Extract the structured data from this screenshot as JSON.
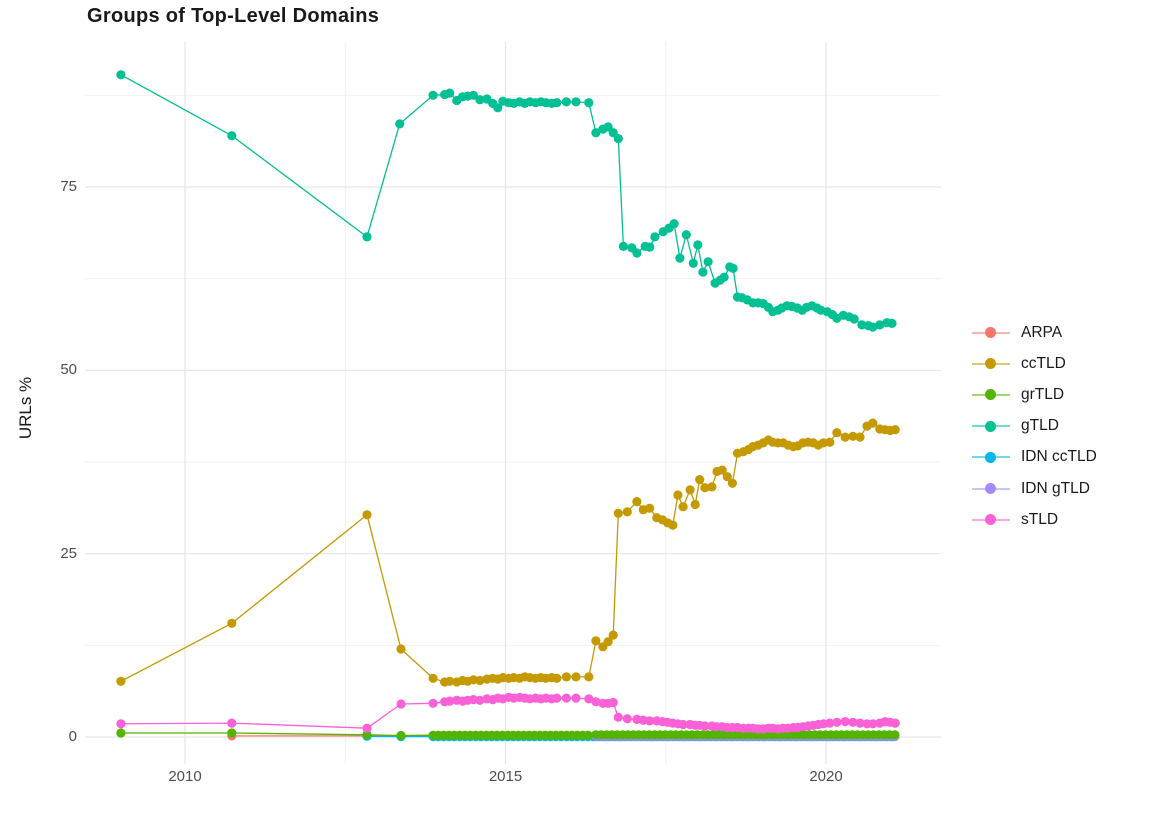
{
  "page": {
    "background": "#FFFFFF",
    "text_color": "#1A1A1A",
    "tick_color": "#4D4D4D",
    "gridline_major_color": "#E6E6E6",
    "gridline_minor_color": "#F0F0F0"
  },
  "chart_data": {
    "type": "line",
    "title": "Groups of Top-Level Domains",
    "xlabel": "",
    "ylabel": "URLs %",
    "grid": "on",
    "legend_position": "right",
    "xlim": [
      2008.4,
      2021.8
    ],
    "ylim": [
      -4.7,
      94.9
    ],
    "x_ticks": [
      {
        "label": "2010",
        "x": 2010
      },
      {
        "label": "2015",
        "x": 2015
      },
      {
        "label": "2020",
        "x": 2020
      }
    ],
    "x_minor_gridlines": [
      2012.5,
      2017.5
    ],
    "y_ticks": [
      {
        "label": "0",
        "y": 0
      },
      {
        "label": "25",
        "y": 25
      },
      {
        "label": "50",
        "y": 50
      },
      {
        "label": "75",
        "y": 75
      }
    ],
    "y_minor_gridlines": [
      12.5,
      37.5,
      62.5,
      87.5
    ],
    "draw_order": [
      "ARPA",
      "IDN ccTLD",
      "IDN gTLD",
      "ccTLD",
      "grTLD",
      "gTLD",
      "sTLD"
    ],
    "series": [
      {
        "name": "ARPA",
        "color": "#F8766D",
        "points": [
          [
            2010.73,
            0.15
          ],
          [
            2012.84,
            0.15
          ],
          [
            2013.37,
            0.1
          ]
        ],
        "runs": [
          [
            2013.87,
            2016.3,
            0.0833,
            0.1
          ],
          [
            2016.41,
            2021.08,
            0.0833,
            0.05
          ]
        ]
      },
      {
        "name": "ccTLD",
        "color": "#C49A00",
        "points": [
          [
            2009.0,
            7.6
          ],
          [
            2010.73,
            15.5
          ],
          [
            2012.84,
            30.3
          ],
          [
            2013.37,
            12.0
          ],
          [
            2013.87,
            8.0
          ],
          [
            2014.05,
            7.5
          ],
          [
            2014.13,
            7.6
          ],
          [
            2014.24,
            7.5
          ],
          [
            2014.33,
            7.7
          ],
          [
            2014.41,
            7.6
          ],
          [
            2014.5,
            7.8
          ],
          [
            2014.6,
            7.7
          ],
          [
            2014.71,
            7.9
          ],
          [
            2014.8,
            8.0
          ],
          [
            2014.88,
            7.9
          ],
          [
            2014.96,
            8.1
          ],
          [
            2015.05,
            8.0
          ],
          [
            2015.13,
            8.1
          ],
          [
            2015.22,
            8.0
          ],
          [
            2015.3,
            8.2
          ],
          [
            2015.38,
            8.1
          ],
          [
            2015.47,
            8.0
          ],
          [
            2015.55,
            8.1
          ],
          [
            2015.63,
            8.0
          ],
          [
            2015.72,
            8.1
          ],
          [
            2015.8,
            8.0
          ],
          [
            2015.95,
            8.2
          ],
          [
            2016.1,
            8.2
          ],
          [
            2016.3,
            8.2
          ],
          [
            2016.41,
            13.1
          ],
          [
            2016.52,
            12.3
          ],
          [
            2016.6,
            13.0
          ],
          [
            2016.68,
            13.9
          ],
          [
            2016.76,
            30.5
          ],
          [
            2016.9,
            30.7
          ],
          [
            2017.05,
            32.1
          ],
          [
            2017.15,
            31.0
          ],
          [
            2017.25,
            31.2
          ],
          [
            2017.36,
            29.9
          ],
          [
            2017.45,
            29.6
          ],
          [
            2017.53,
            29.2
          ],
          [
            2017.61,
            28.9
          ],
          [
            2017.69,
            33.0
          ],
          [
            2017.77,
            31.4
          ],
          [
            2017.88,
            33.7
          ],
          [
            2017.96,
            31.7
          ],
          [
            2018.03,
            35.1
          ],
          [
            2018.11,
            34.0
          ],
          [
            2018.22,
            34.1
          ],
          [
            2018.3,
            36.2
          ],
          [
            2018.38,
            36.4
          ],
          [
            2018.46,
            35.5
          ],
          [
            2018.54,
            34.6
          ],
          [
            2018.62,
            38.7
          ],
          [
            2018.71,
            38.9
          ],
          [
            2018.79,
            39.2
          ],
          [
            2018.86,
            39.6
          ],
          [
            2018.94,
            39.8
          ],
          [
            2019.02,
            40.1
          ],
          [
            2019.1,
            40.5
          ],
          [
            2019.17,
            40.2
          ],
          [
            2019.25,
            40.1
          ],
          [
            2019.33,
            40.1
          ],
          [
            2019.41,
            39.8
          ],
          [
            2019.49,
            39.6
          ],
          [
            2019.56,
            39.7
          ],
          [
            2019.64,
            40.1
          ],
          [
            2019.72,
            40.2
          ],
          [
            2019.8,
            40.1
          ],
          [
            2019.88,
            39.8
          ],
          [
            2019.96,
            40.1
          ],
          [
            2020.06,
            40.2
          ],
          [
            2020.17,
            41.5
          ],
          [
            2020.3,
            40.9
          ],
          [
            2020.42,
            41.0
          ],
          [
            2020.53,
            40.9
          ],
          [
            2020.64,
            42.4
          ],
          [
            2020.73,
            42.8
          ],
          [
            2020.84,
            42.0
          ],
          [
            2020.92,
            41.9
          ],
          [
            2021.0,
            41.8
          ],
          [
            2021.08,
            41.9
          ]
        ]
      },
      {
        "name": "grTLD",
        "color": "#53B400",
        "points": [
          [
            2009.0,
            0.55
          ],
          [
            2010.73,
            0.55
          ],
          [
            2012.84,
            0.3
          ],
          [
            2013.37,
            0.2
          ]
        ],
        "runs": [
          [
            2013.87,
            2016.3,
            0.0833,
            0.25
          ],
          [
            2016.41,
            2021.08,
            0.0833,
            0.3
          ]
        ]
      },
      {
        "name": "gTLD",
        "color": "#00C094",
        "points": [
          [
            2009.0,
            90.3
          ],
          [
            2010.73,
            82.0
          ],
          [
            2012.84,
            68.2
          ],
          [
            2013.35,
            83.6
          ],
          [
            2013.87,
            87.5
          ],
          [
            2014.05,
            87.6
          ],
          [
            2014.13,
            87.8
          ],
          [
            2014.24,
            86.8
          ],
          [
            2014.33,
            87.3
          ],
          [
            2014.41,
            87.4
          ],
          [
            2014.5,
            87.5
          ],
          [
            2014.6,
            86.9
          ],
          [
            2014.71,
            87.0
          ],
          [
            2014.8,
            86.4
          ],
          [
            2014.88,
            85.8
          ],
          [
            2014.96,
            86.7
          ],
          [
            2015.05,
            86.5
          ],
          [
            2015.13,
            86.4
          ],
          [
            2015.22,
            86.6
          ],
          [
            2015.3,
            86.4
          ],
          [
            2015.38,
            86.6
          ],
          [
            2015.47,
            86.5
          ],
          [
            2015.55,
            86.6
          ],
          [
            2015.63,
            86.5
          ],
          [
            2015.72,
            86.4
          ],
          [
            2015.8,
            86.5
          ],
          [
            2015.95,
            86.6
          ],
          [
            2016.1,
            86.6
          ],
          [
            2016.3,
            86.5
          ],
          [
            2016.41,
            82.4
          ],
          [
            2016.52,
            82.9
          ],
          [
            2016.6,
            83.2
          ],
          [
            2016.68,
            82.4
          ],
          [
            2016.76,
            81.6
          ],
          [
            2016.84,
            66.9
          ],
          [
            2016.97,
            66.7
          ],
          [
            2017.05,
            66.0
          ],
          [
            2017.18,
            66.9
          ],
          [
            2017.25,
            66.8
          ],
          [
            2017.33,
            68.2
          ],
          [
            2017.46,
            68.9
          ],
          [
            2017.55,
            69.4
          ],
          [
            2017.63,
            70.0
          ],
          [
            2017.72,
            65.3
          ],
          [
            2017.82,
            68.5
          ],
          [
            2017.93,
            64.6
          ],
          [
            2018.0,
            67.1
          ],
          [
            2018.08,
            63.4
          ],
          [
            2018.16,
            64.8
          ],
          [
            2018.27,
            61.9
          ],
          [
            2018.35,
            62.3
          ],
          [
            2018.41,
            62.7
          ],
          [
            2018.5,
            64.1
          ],
          [
            2018.55,
            63.9
          ],
          [
            2018.62,
            60.0
          ],
          [
            2018.69,
            59.9
          ],
          [
            2018.77,
            59.6
          ],
          [
            2018.86,
            59.2
          ],
          [
            2018.94,
            59.2
          ],
          [
            2019.02,
            59.1
          ],
          [
            2019.1,
            58.6
          ],
          [
            2019.17,
            58.0
          ],
          [
            2019.25,
            58.2
          ],
          [
            2019.31,
            58.5
          ],
          [
            2019.39,
            58.8
          ],
          [
            2019.47,
            58.7
          ],
          [
            2019.55,
            58.5
          ],
          [
            2019.63,
            58.2
          ],
          [
            2019.7,
            58.6
          ],
          [
            2019.78,
            58.8
          ],
          [
            2019.86,
            58.5
          ],
          [
            2019.92,
            58.2
          ],
          [
            2020.02,
            58.0
          ],
          [
            2020.1,
            57.6
          ],
          [
            2020.17,
            57.1
          ],
          [
            2020.27,
            57.5
          ],
          [
            2020.36,
            57.3
          ],
          [
            2020.44,
            57.0
          ],
          [
            2020.56,
            56.2
          ],
          [
            2020.66,
            56.1
          ],
          [
            2020.73,
            55.9
          ],
          [
            2020.84,
            56.2
          ],
          [
            2020.95,
            56.5
          ],
          [
            2021.03,
            56.4
          ]
        ]
      },
      {
        "name": "IDN ccTLD",
        "color": "#00B6EB",
        "points": [
          [
            2012.84,
            0.1
          ],
          [
            2013.37,
            0.05
          ]
        ],
        "runs": [
          [
            2013.87,
            2021.08,
            0.0833,
            0.05
          ]
        ]
      },
      {
        "name": "IDN gTLD",
        "color": "#A58AFF",
        "points": [],
        "runs": [
          [
            2016.41,
            2021.08,
            0.0833,
            0.1
          ]
        ]
      },
      {
        "name": "sTLD",
        "color": "#FB61D7",
        "points": [
          [
            2009.0,
            1.8
          ],
          [
            2010.73,
            1.9
          ],
          [
            2012.84,
            1.2
          ],
          [
            2013.37,
            4.5
          ],
          [
            2013.87,
            4.6
          ],
          [
            2014.05,
            4.8
          ],
          [
            2014.13,
            4.9
          ],
          [
            2014.24,
            5.0
          ],
          [
            2014.33,
            4.9
          ],
          [
            2014.41,
            5.0
          ],
          [
            2014.5,
            5.1
          ],
          [
            2014.6,
            5.0
          ],
          [
            2014.71,
            5.2
          ],
          [
            2014.8,
            5.1
          ],
          [
            2014.88,
            5.3
          ],
          [
            2014.96,
            5.2
          ],
          [
            2015.05,
            5.4
          ],
          [
            2015.13,
            5.3
          ],
          [
            2015.22,
            5.4
          ],
          [
            2015.3,
            5.3
          ],
          [
            2015.38,
            5.2
          ],
          [
            2015.47,
            5.3
          ],
          [
            2015.55,
            5.2
          ],
          [
            2015.63,
            5.3
          ],
          [
            2015.72,
            5.2
          ],
          [
            2015.8,
            5.3
          ],
          [
            2015.95,
            5.3
          ],
          [
            2016.1,
            5.3
          ],
          [
            2016.3,
            5.2
          ],
          [
            2016.41,
            4.8
          ],
          [
            2016.52,
            4.6
          ],
          [
            2016.6,
            4.6
          ],
          [
            2016.68,
            4.7
          ],
          [
            2016.76,
            2.7
          ],
          [
            2016.9,
            2.5
          ],
          [
            2017.05,
            2.4
          ],
          [
            2017.15,
            2.3
          ],
          [
            2017.25,
            2.2
          ],
          [
            2017.36,
            2.2
          ],
          [
            2017.45,
            2.1
          ],
          [
            2017.53,
            2.0
          ],
          [
            2017.61,
            1.9
          ],
          [
            2017.69,
            1.8
          ],
          [
            2017.77,
            1.7
          ],
          [
            2017.88,
            1.7
          ],
          [
            2017.96,
            1.6
          ],
          [
            2018.03,
            1.6
          ],
          [
            2018.11,
            1.5
          ],
          [
            2018.22,
            1.5
          ],
          [
            2018.3,
            1.4
          ],
          [
            2018.38,
            1.4
          ],
          [
            2018.46,
            1.3
          ],
          [
            2018.54,
            1.3
          ],
          [
            2018.62,
            1.3
          ],
          [
            2018.71,
            1.2
          ],
          [
            2018.79,
            1.2
          ],
          [
            2018.86,
            1.2
          ],
          [
            2018.94,
            1.1
          ],
          [
            2019.02,
            1.1
          ],
          [
            2019.1,
            1.2
          ],
          [
            2019.17,
            1.2
          ],
          [
            2019.25,
            1.1
          ],
          [
            2019.33,
            1.2
          ],
          [
            2019.41,
            1.2
          ],
          [
            2019.49,
            1.3
          ],
          [
            2019.56,
            1.3
          ],
          [
            2019.64,
            1.4
          ],
          [
            2019.72,
            1.5
          ],
          [
            2019.8,
            1.6
          ],
          [
            2019.88,
            1.7
          ],
          [
            2019.96,
            1.8
          ],
          [
            2020.06,
            1.9
          ],
          [
            2020.17,
            2.0
          ],
          [
            2020.3,
            2.1
          ],
          [
            2020.42,
            2.0
          ],
          [
            2020.53,
            1.9
          ],
          [
            2020.64,
            1.8
          ],
          [
            2020.73,
            1.8
          ],
          [
            2020.84,
            1.9
          ],
          [
            2020.92,
            2.1
          ],
          [
            2021.0,
            2.0
          ],
          [
            2021.08,
            1.9
          ]
        ]
      }
    ]
  }
}
